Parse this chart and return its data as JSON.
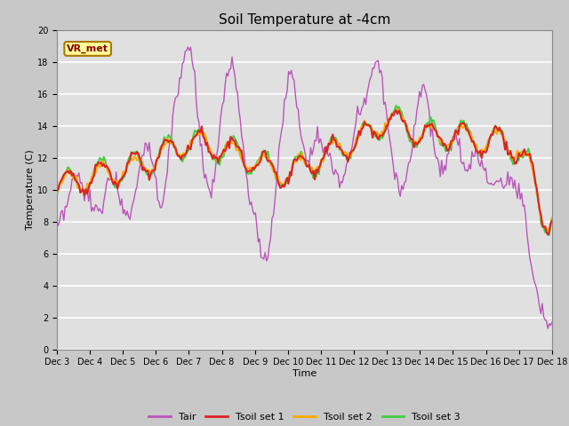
{
  "title": "Soil Temperature at -4cm",
  "xlabel": "Time",
  "ylabel": "Temperature (C)",
  "ylim": [
    0,
    20
  ],
  "xlim": [
    0,
    15
  ],
  "xtick_labels": [
    "Dec 3",
    "Dec 4",
    "Dec 5",
    "Dec 6",
    "Dec 7",
    "Dec 8",
    "Dec 9",
    "Dec 10",
    "Dec 11",
    "Dec 12",
    "Dec 13",
    "Dec 14",
    "Dec 15",
    "Dec 16",
    "Dec 17",
    "Dec 18"
  ],
  "ytick_vals": [
    0,
    2,
    4,
    6,
    8,
    10,
    12,
    14,
    16,
    18,
    20
  ],
  "fig_bg_color": "#c8c8c8",
  "plot_bg_color": "#e0e0e0",
  "grid_color": "#ffffff",
  "line_colors": {
    "Tair": "#bb55bb",
    "Tsoil1": "#dd2222",
    "Tsoil2": "#ffaa00",
    "Tsoil3": "#44cc44"
  },
  "legend_labels": [
    "Tair",
    "Tsoil set 1",
    "Tsoil set 2",
    "Tsoil set 3"
  ],
  "annotation_text": "VR_met",
  "annotation_bg": "#ffff99",
  "annotation_border": "#aa7700",
  "title_fontsize": 11,
  "tick_fontsize": 7,
  "label_fontsize": 8
}
